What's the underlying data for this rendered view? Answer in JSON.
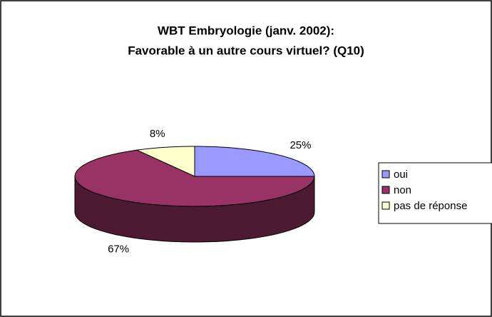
{
  "chart_data": {
    "type": "pie3d",
    "title": [
      "WBT Embryologie (janv. 2002):",
      "Favorable à un autre cours virtuel? (Q10)"
    ],
    "categories": [
      "oui",
      "non",
      "pas de réponse"
    ],
    "values": [
      25,
      67,
      8
    ],
    "value_labels": [
      "25%",
      "67%",
      "8%"
    ],
    "colors": [
      "#9999ff",
      "#993366",
      "#ffffcc"
    ],
    "side_colors": [
      "#4d4d80",
      "#4d1a33",
      "#808066"
    ],
    "legend": "right"
  }
}
